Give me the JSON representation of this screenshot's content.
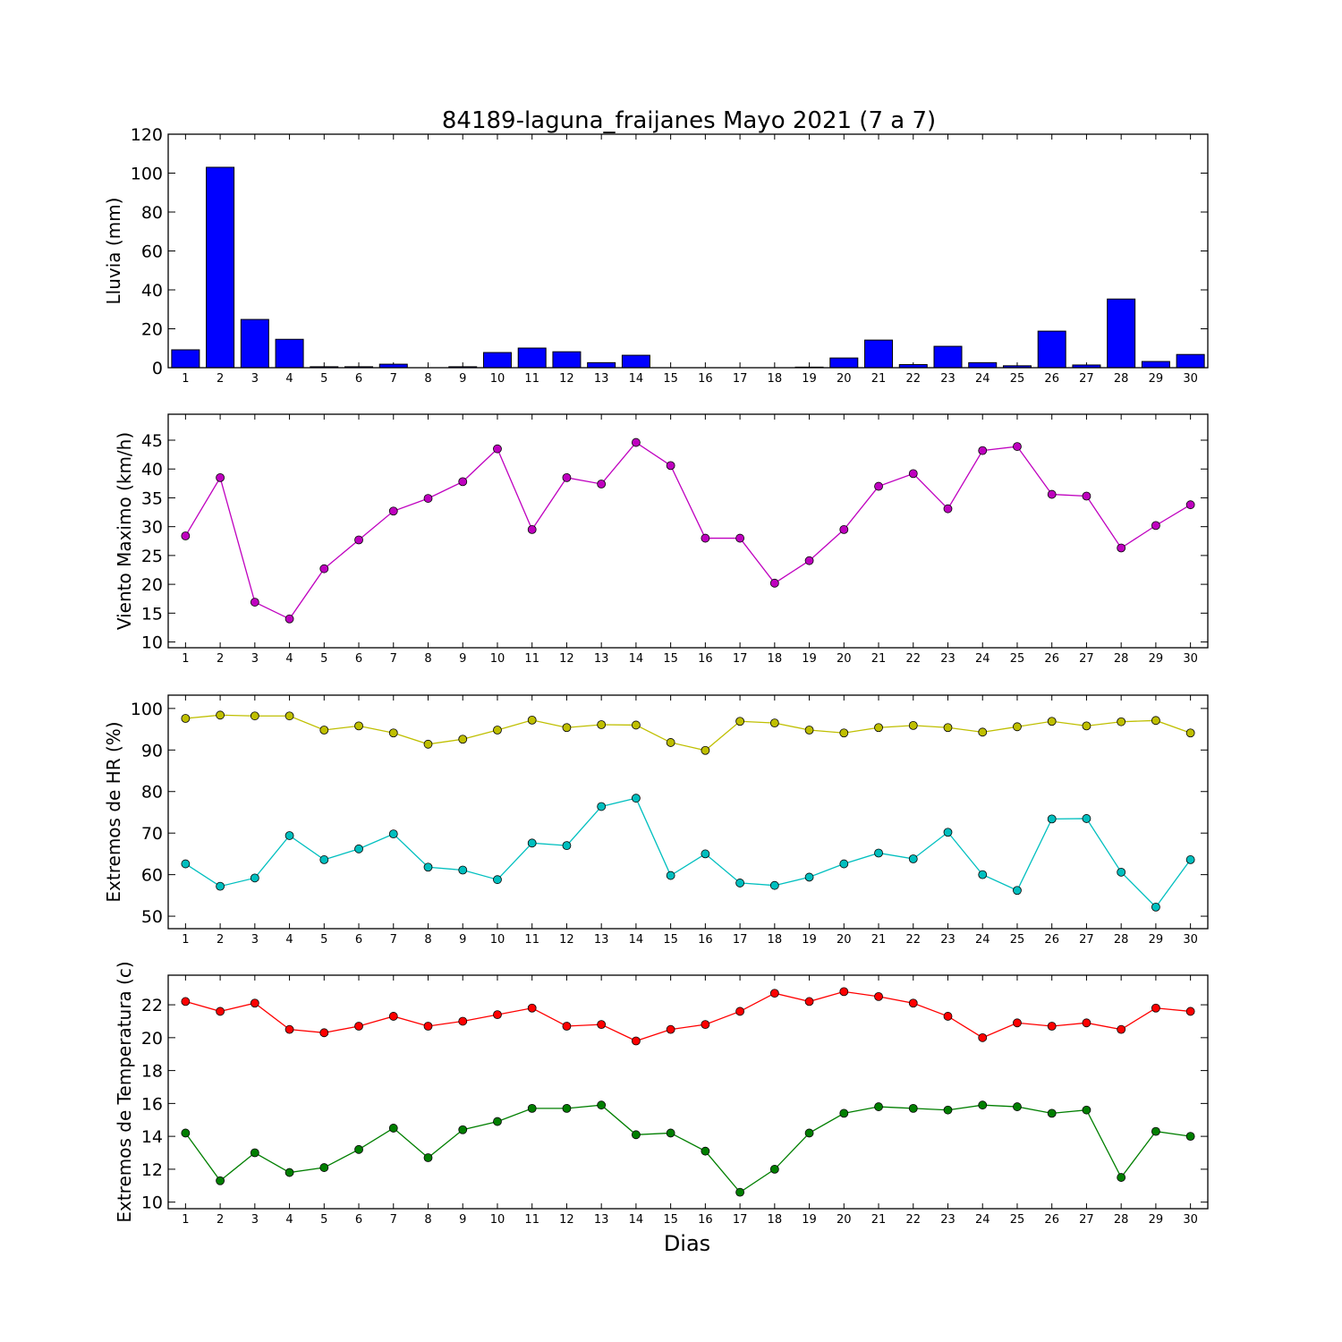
{
  "title": "84189-laguna_fraijanes Mayo 2021  (7 a 7)",
  "xlabel": "Dias",
  "chart_data": [
    {
      "type": "bar",
      "ylabel": "Lluvia (mm)",
      "ylim": [
        0,
        120
      ],
      "yticks": [
        0,
        20,
        40,
        60,
        80,
        100,
        120
      ],
      "categories": [
        1,
        2,
        3,
        4,
        5,
        6,
        7,
        8,
        9,
        10,
        11,
        12,
        13,
        14,
        15,
        16,
        17,
        18,
        19,
        20,
        21,
        22,
        23,
        24,
        25,
        26,
        27,
        28,
        29,
        30
      ],
      "series": [
        {
          "color": "#0000ff",
          "values": [
            9.2,
            103,
            24.8,
            14.6,
            0.5,
            0.5,
            1.8,
            0,
            0.5,
            7.8,
            10.1,
            8.2,
            2.6,
            6.4,
            0,
            0,
            0,
            0,
            0.3,
            5.0,
            14.2,
            1.6,
            11.0,
            2.6,
            1.0,
            18.8,
            1.4,
            35.3,
            3.2,
            6.8
          ]
        }
      ]
    },
    {
      "type": "line",
      "ylabel": "Viento Maximo (km/h)",
      "ylim": [
        9,
        49.5
      ],
      "yticks": [
        10,
        15,
        20,
        25,
        30,
        35,
        40,
        45
      ],
      "categories": [
        1,
        2,
        3,
        4,
        5,
        6,
        7,
        8,
        9,
        10,
        11,
        12,
        13,
        14,
        15,
        16,
        17,
        18,
        19,
        20,
        21,
        22,
        23,
        24,
        25,
        26,
        27,
        28,
        29,
        30
      ],
      "series": [
        {
          "color": "#bf00bf",
          "values": [
            28.4,
            38.5,
            16.9,
            14.0,
            22.7,
            27.7,
            32.7,
            34.9,
            37.8,
            43.5,
            29.5,
            38.5,
            37.4,
            44.6,
            40.6,
            28.0,
            28.0,
            20.2,
            24.1,
            29.5,
            37.0,
            39.2,
            33.1,
            43.2,
            43.9,
            35.6,
            35.3,
            26.3,
            30.2,
            33.8
          ]
        }
      ]
    },
    {
      "type": "line",
      "ylabel": "Extremos de HR (%)",
      "ylim": [
        47,
        103.2
      ],
      "yticks": [
        50,
        60,
        70,
        80,
        90,
        100
      ],
      "categories": [
        1,
        2,
        3,
        4,
        5,
        6,
        7,
        8,
        9,
        10,
        11,
        12,
        13,
        14,
        15,
        16,
        17,
        18,
        19,
        20,
        21,
        22,
        23,
        24,
        25,
        26,
        27,
        28,
        29,
        30
      ],
      "series": [
        {
          "color": "#bfbf00",
          "values": [
            97.6,
            98.4,
            98.2,
            98.2,
            94.8,
            95.8,
            94.1,
            91.4,
            92.6,
            94.8,
            97.2,
            95.4,
            96.1,
            96.0,
            91.8,
            89.9,
            96.9,
            96.5,
            94.8,
            94.1,
            95.4,
            95.9,
            95.4,
            94.3,
            95.6,
            96.9,
            95.8,
            96.8,
            97.1,
            94.1
          ]
        },
        {
          "color": "#00bfbf",
          "values": [
            62.6,
            57.2,
            59.2,
            69.4,
            63.6,
            66.2,
            69.8,
            61.8,
            61.1,
            58.8,
            67.6,
            67.0,
            76.4,
            78.4,
            59.8,
            65.0,
            58.0,
            57.4,
            59.4,
            62.6,
            65.2,
            63.8,
            70.2,
            60.0,
            56.2,
            73.4,
            73.5,
            60.6,
            52.2,
            63.6
          ]
        }
      ]
    },
    {
      "type": "line",
      "ylabel": "Extremos de Temperatura (c)",
      "ylim": [
        9.6,
        23.8
      ],
      "yticks": [
        10,
        12,
        14,
        16,
        18,
        20,
        22
      ],
      "categories": [
        1,
        2,
        3,
        4,
        5,
        6,
        7,
        8,
        9,
        10,
        11,
        12,
        13,
        14,
        15,
        16,
        17,
        18,
        19,
        20,
        21,
        22,
        23,
        24,
        25,
        26,
        27,
        28,
        29,
        30
      ],
      "series": [
        {
          "color": "#ff0000",
          "values": [
            22.2,
            21.6,
            22.1,
            20.5,
            20.3,
            20.7,
            21.3,
            20.7,
            21.0,
            21.4,
            21.8,
            20.7,
            20.8,
            19.8,
            20.5,
            20.8,
            21.6,
            22.7,
            22.2,
            22.8,
            22.5,
            22.1,
            21.3,
            20.0,
            20.9,
            20.7,
            20.9,
            20.5,
            21.8,
            21.6
          ]
        },
        {
          "color": "#007f00",
          "values": [
            14.2,
            11.3,
            13.0,
            11.8,
            12.1,
            13.2,
            14.5,
            12.7,
            14.4,
            14.9,
            15.7,
            15.7,
            15.9,
            14.1,
            14.2,
            13.1,
            10.6,
            12.0,
            14.2,
            15.4,
            15.8,
            15.7,
            15.6,
            15.9,
            15.8,
            15.4,
            15.6,
            11.5,
            14.3,
            14.0
          ]
        }
      ]
    }
  ]
}
